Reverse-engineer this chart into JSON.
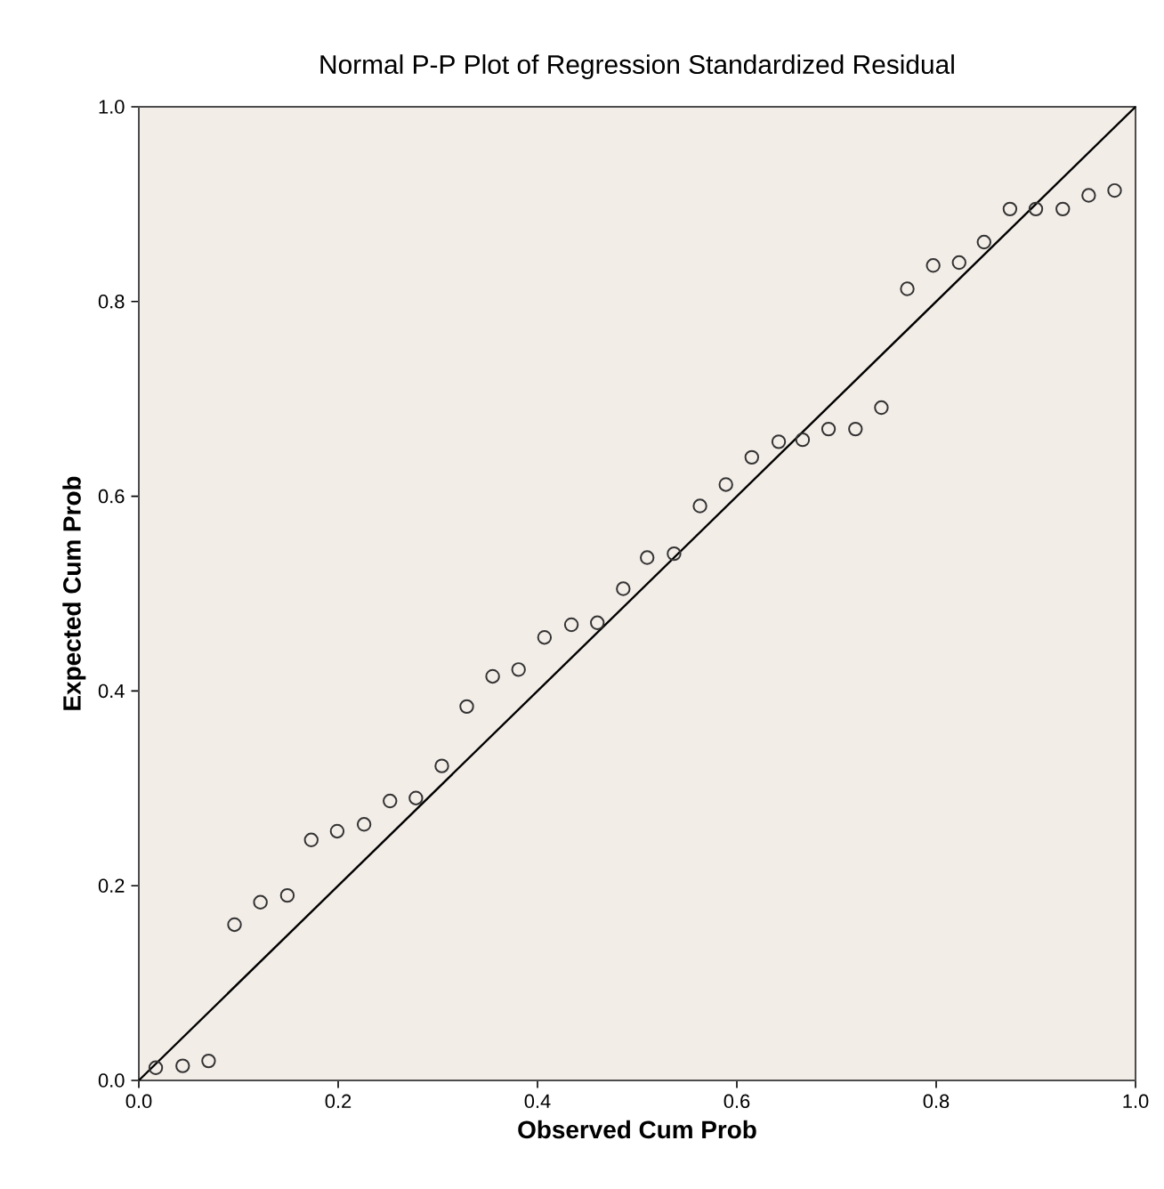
{
  "chart_data": {
    "type": "scatter",
    "title": "Normal P-P Plot of Regression Standardized Residual",
    "xlabel": "Observed Cum Prob",
    "ylabel": "Expected Cum Prob",
    "xlim": [
      0,
      1
    ],
    "ylim": [
      0,
      1
    ],
    "xticks": [
      {
        "value": 0,
        "label": "0.0"
      },
      {
        "value": 0.2,
        "label": "0.2"
      },
      {
        "value": 0.4,
        "label": "0.4"
      },
      {
        "value": 0.6,
        "label": "0.6"
      },
      {
        "value": 0.8,
        "label": "0.8"
      },
      {
        "value": 1,
        "label": "1.0"
      }
    ],
    "yticks": [
      {
        "value": 0,
        "label": "0.0"
      },
      {
        "value": 0.2,
        "label": "0.2"
      },
      {
        "value": 0.4,
        "label": "0.4"
      },
      {
        "value": 0.6,
        "label": "0.6"
      },
      {
        "value": 0.8,
        "label": "0.8"
      },
      {
        "value": 1,
        "label": "1.0"
      }
    ],
    "grid": false,
    "series": [
      {
        "marker": "circle",
        "color": "#333333",
        "x": [
          0.017,
          0.044,
          0.07,
          0.096,
          0.122,
          0.149,
          0.173,
          0.199,
          0.226,
          0.252,
          0.278,
          0.304,
          0.329,
          0.355,
          0.381,
          0.407,
          0.434,
          0.46,
          0.486,
          0.51,
          0.537,
          0.563,
          0.589,
          0.615,
          0.642,
          0.666,
          0.692,
          0.719,
          0.745,
          0.771,
          0.797,
          0.823,
          0.848,
          0.874,
          0.9,
          0.927,
          0.953,
          0.979
        ],
        "values": [
          0.013,
          0.015,
          0.02,
          0.16,
          0.183,
          0.19,
          0.247,
          0.256,
          0.263,
          0.287,
          0.29,
          0.323,
          0.384,
          0.415,
          0.422,
          0.455,
          0.468,
          0.47,
          0.505,
          0.537,
          0.541,
          0.59,
          0.612,
          0.64,
          0.656,
          0.658,
          0.669,
          0.669,
          0.691,
          0.813,
          0.837,
          0.84,
          0.861,
          0.895,
          0.895,
          0.895,
          0.909,
          0.914
        ]
      },
      {
        "type": "line",
        "marker": "none",
        "color": "#000000",
        "x": [
          0,
          1
        ],
        "values": [
          0,
          1
        ]
      }
    ]
  }
}
